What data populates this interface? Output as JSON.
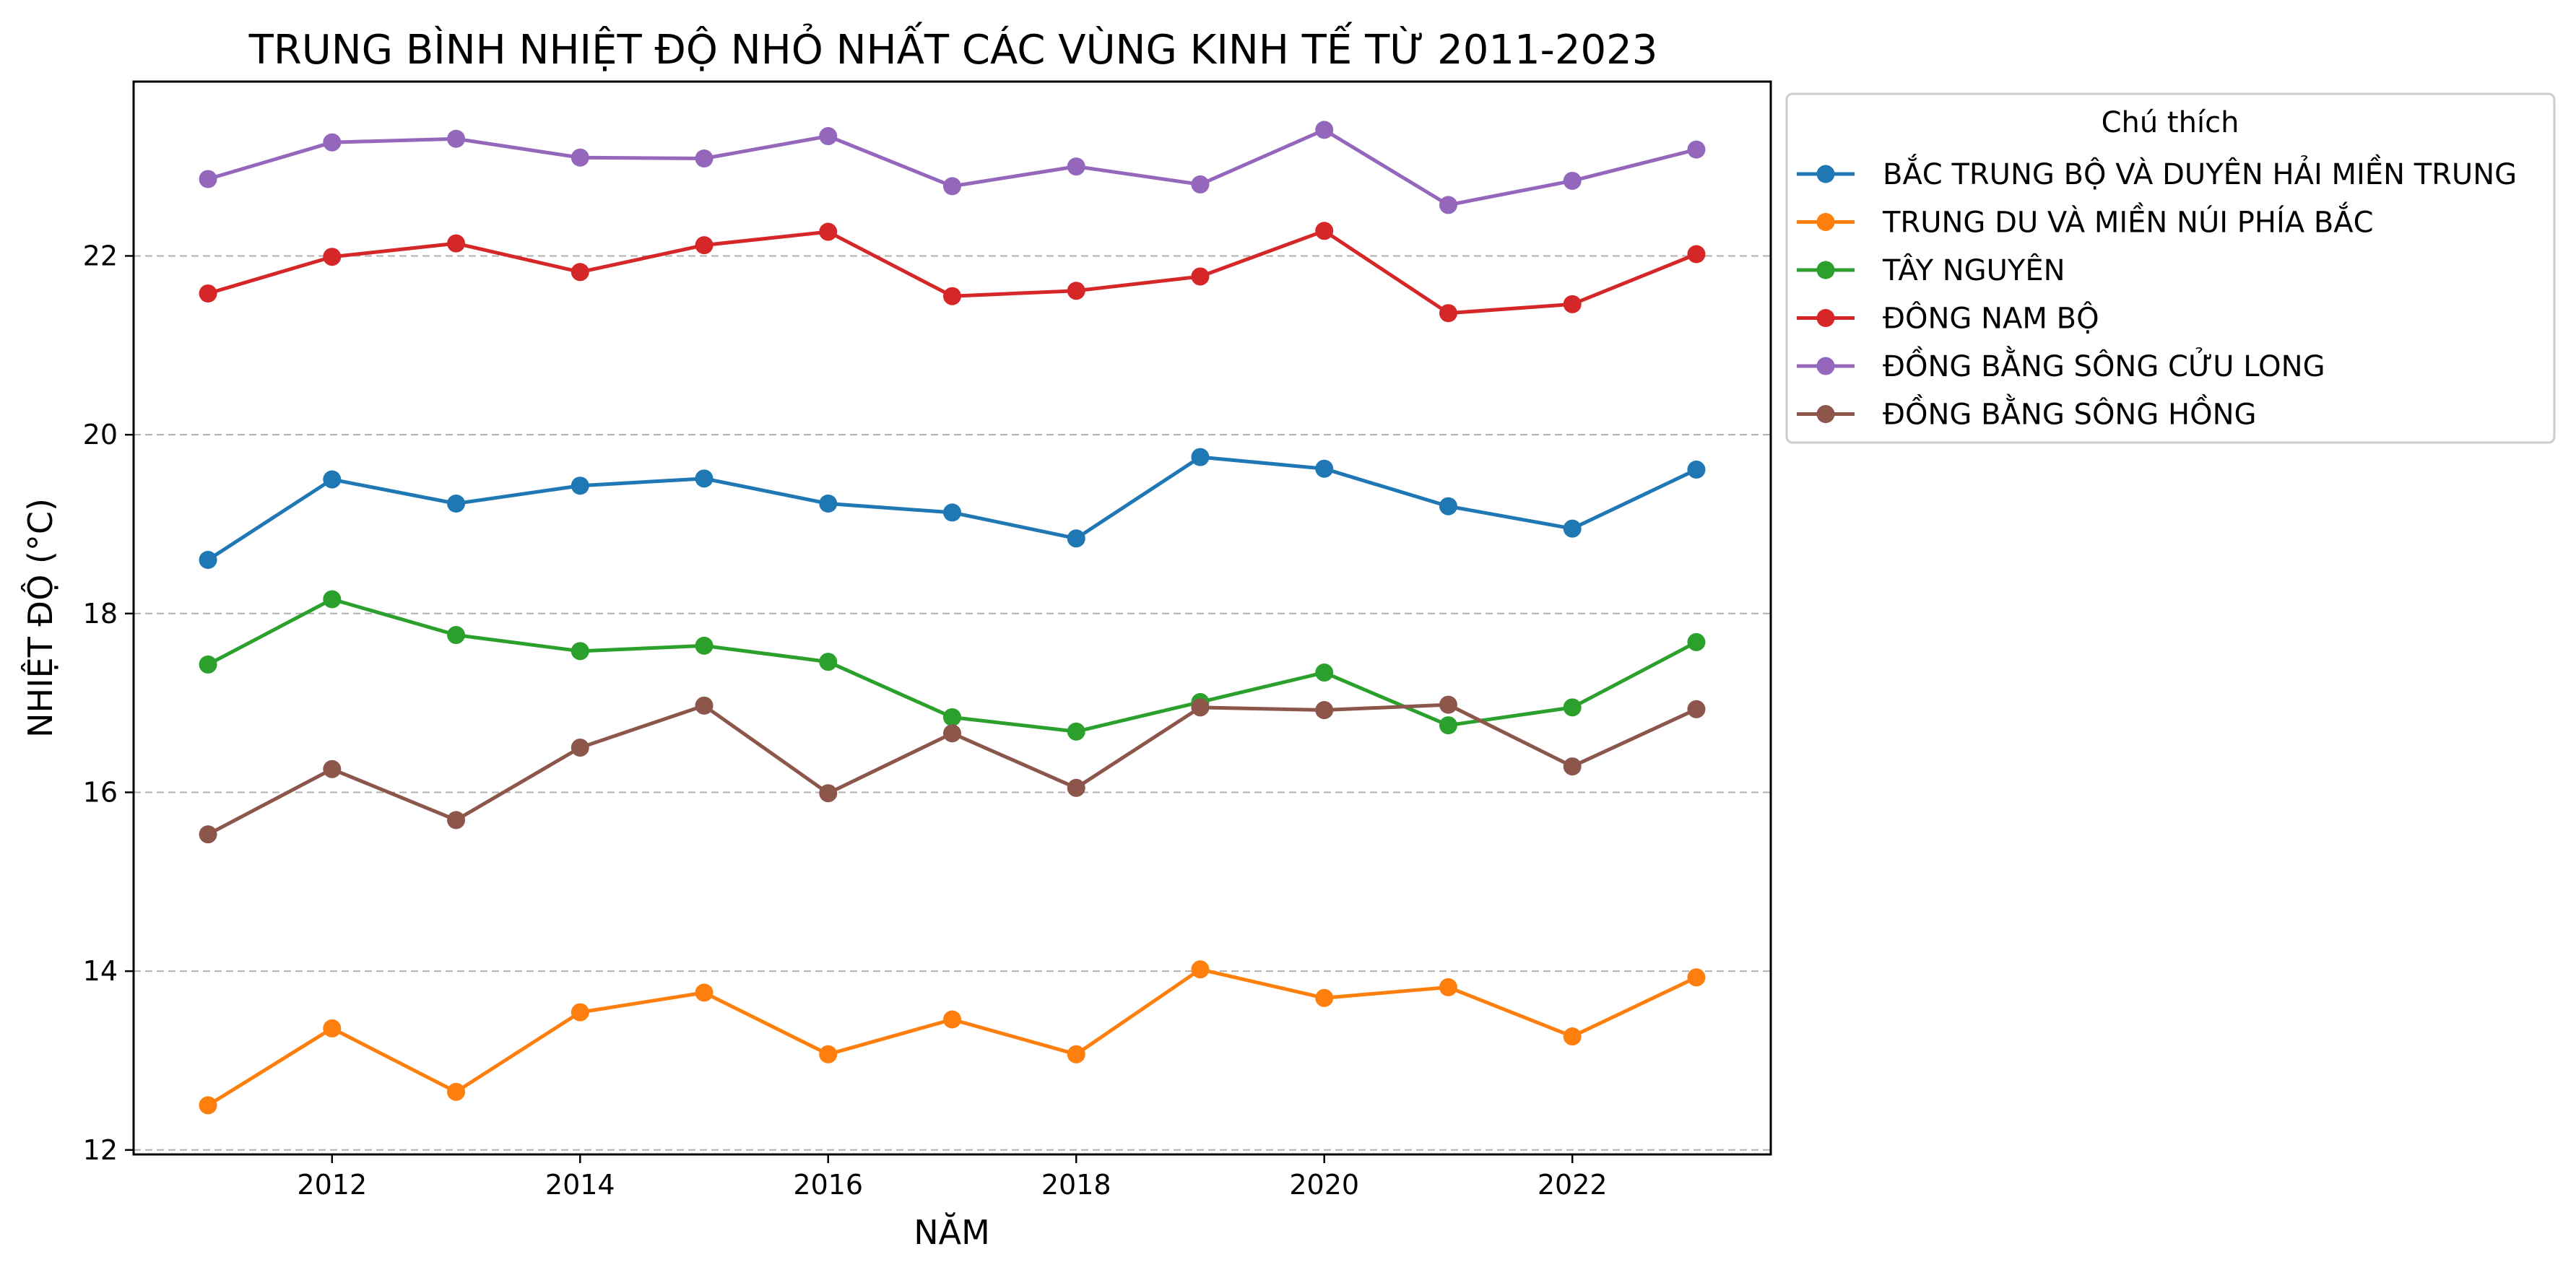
{
  "chart_data": {
    "type": "line",
    "title": "TRUNG BÌNH NHIỆT ĐỘ NHỎ NHẤT CÁC VÙNG KINH TẾ TỪ 2011-2023",
    "xlabel": "NĂM",
    "ylabel": "NHIỆT ĐỘ (°C)",
    "x": [
      2011,
      2012,
      2013,
      2014,
      2015,
      2016,
      2017,
      2018,
      2019,
      2020,
      2021,
      2022,
      2023
    ],
    "xlim": [
      2010.4,
      2023.6
    ],
    "ylim": [
      11.95,
      23.95
    ],
    "xticks": [
      "2012",
      "2014",
      "2016",
      "2018",
      "2020",
      "2022"
    ],
    "yticks": [
      "12",
      "14",
      "16",
      "18",
      "20",
      "22"
    ],
    "grid": "y-dashed",
    "legend": {
      "title": "Chú thích",
      "placement": "outside-top-right"
    },
    "series": [
      {
        "name": "BẮC TRUNG BỘ VÀ DUYÊN HẢI MIỀN TRUNG",
        "color": "#1f77b4",
        "values": [
          18.6,
          19.5,
          19.23,
          19.43,
          19.51,
          19.23,
          19.13,
          18.84,
          19.75,
          19.62,
          19.2,
          18.95,
          19.61
        ]
      },
      {
        "name": "TRUNG DU VÀ MIỀN NÚI PHÍA BẮC",
        "color": "#ff7f0e",
        "values": [
          12.5,
          13.36,
          12.65,
          13.54,
          13.76,
          13.07,
          13.46,
          13.07,
          14.02,
          13.7,
          13.82,
          13.27,
          13.93
        ]
      },
      {
        "name": "TÂY NGUYÊN",
        "color": "#2ca02c",
        "values": [
          17.43,
          18.16,
          17.76,
          17.58,
          17.64,
          17.46,
          16.84,
          16.68,
          17.01,
          17.34,
          16.75,
          16.95,
          17.68
        ]
      },
      {
        "name": "ĐÔNG NAM BỘ",
        "color": "#d62728",
        "values": [
          21.58,
          21.99,
          22.14,
          21.82,
          22.12,
          22.27,
          21.55,
          21.61,
          21.77,
          22.28,
          21.36,
          21.46,
          22.02
        ]
      },
      {
        "name": "ĐỒNG BẰNG SÔNG CỬU LONG",
        "color": "#9467bd",
        "values": [
          22.86,
          23.27,
          23.31,
          23.1,
          23.09,
          23.34,
          22.78,
          23.0,
          22.8,
          23.41,
          22.57,
          22.84,
          23.19
        ]
      },
      {
        "name": "ĐỒNG BẰNG SÔNG HỒNG",
        "color": "#8c564b",
        "values": [
          15.53,
          16.26,
          15.69,
          16.5,
          16.97,
          15.99,
          16.66,
          16.05,
          16.95,
          16.92,
          16.98,
          16.29,
          16.93
        ]
      }
    ]
  }
}
